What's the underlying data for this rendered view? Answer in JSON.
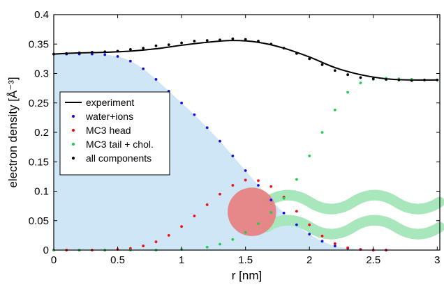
{
  "chart_data": {
    "type": "scatter",
    "title": "",
    "xlabel": "r [nm]",
    "ylabel": "electron density [Å⁻³]",
    "xlim": [
      0,
      3.02
    ],
    "ylim": [
      0,
      0.4
    ],
    "xticks": [
      0,
      0.5,
      1,
      1.5,
      2,
      2.5,
      3
    ],
    "xtick_labels": [
      "0",
      "0.5",
      "1",
      "1.5",
      "2",
      "2.5",
      "3"
    ],
    "yticks": [
      0,
      0.05,
      0.1,
      0.15,
      0.2,
      0.25,
      0.3,
      0.35,
      0.4
    ],
    "ytick_labels": [
      "0",
      "0.05",
      "0.1",
      "0.15",
      "0.2",
      "0.25",
      "0.3",
      "0.35",
      "0.4"
    ],
    "grid": false,
    "legend_position": "middle-left",
    "series": [
      {
        "name": "experiment",
        "kind": "line",
        "color": "#000000",
        "x": [
          0,
          0.2,
          0.4,
          0.6,
          0.8,
          1.0,
          1.2,
          1.4,
          1.6,
          1.8,
          2.0,
          2.2,
          2.4,
          2.6,
          2.8,
          3.0
        ],
        "y": [
          0.333,
          0.335,
          0.336,
          0.338,
          0.342,
          0.348,
          0.353,
          0.356,
          0.353,
          0.343,
          0.328,
          0.31,
          0.298,
          0.291,
          0.289,
          0.289
        ]
      },
      {
        "name": "water+ions",
        "kind": "points",
        "color": "#1010ee",
        "x": [
          0,
          0.1,
          0.2,
          0.3,
          0.4,
          0.5,
          0.6,
          0.7,
          0.8,
          0.9,
          1.0,
          1.1,
          1.2,
          1.3,
          1.4,
          1.5,
          1.6,
          1.7,
          1.8,
          1.9,
          2.0,
          2.1,
          2.2,
          2.3,
          2.4,
          2.5,
          2.6
        ],
        "y": [
          0.333,
          0.333,
          0.333,
          0.333,
          0.332,
          0.329,
          0.321,
          0.308,
          0.29,
          0.27,
          0.25,
          0.23,
          0.208,
          0.185,
          0.16,
          0.135,
          0.11,
          0.085,
          0.063,
          0.043,
          0.027,
          0.015,
          0.007,
          0.003,
          0.001,
          0.0,
          0.0
        ]
      },
      {
        "name": "MC3 head",
        "kind": "points",
        "color": "#ee1010",
        "x": [
          0,
          0.1,
          0.2,
          0.3,
          0.4,
          0.5,
          0.6,
          0.7,
          0.8,
          0.9,
          1.0,
          1.1,
          1.2,
          1.3,
          1.4,
          1.5,
          1.6,
          1.7,
          1.8,
          1.9,
          2.0,
          2.1,
          2.2,
          2.3,
          2.4,
          2.5,
          2.6
        ],
        "y": [
          0.0,
          0.0,
          0.0,
          0.0,
          0.0,
          0.001,
          0.003,
          0.007,
          0.014,
          0.025,
          0.04,
          0.058,
          0.077,
          0.095,
          0.11,
          0.119,
          0.118,
          0.108,
          0.09,
          0.066,
          0.043,
          0.024,
          0.011,
          0.004,
          0.001,
          0.0,
          0.0
        ]
      },
      {
        "name": "MC3 tail + chol.",
        "kind": "points",
        "color": "#20cc50",
        "x": [
          0,
          0.2,
          0.4,
          0.6,
          0.8,
          1.0,
          1.2,
          1.3,
          1.4,
          1.5,
          1.6,
          1.7,
          1.8,
          1.9,
          2.0,
          2.1,
          2.2,
          2.3,
          2.4,
          2.5,
          2.6,
          2.7,
          2.8,
          2.9,
          3.0
        ],
        "y": [
          0.0,
          0.0,
          0.0,
          0.0,
          0.0,
          0.001,
          0.005,
          0.01,
          0.018,
          0.03,
          0.045,
          0.064,
          0.088,
          0.12,
          0.16,
          0.2,
          0.238,
          0.268,
          0.284,
          0.29,
          0.292,
          0.291,
          0.29,
          0.289,
          0.289
        ]
      },
      {
        "name": "all components",
        "kind": "points",
        "color": "#000000",
        "x": [
          0,
          0.1,
          0.2,
          0.3,
          0.4,
          0.5,
          0.6,
          0.7,
          0.8,
          0.9,
          1.0,
          1.1,
          1.2,
          1.3,
          1.4,
          1.5,
          1.6,
          1.7,
          1.8,
          1.9,
          2.0,
          2.1,
          2.2,
          2.3,
          2.4,
          2.5,
          2.6,
          2.7,
          2.8,
          2.9,
          3.0
        ],
        "y": [
          0.333,
          0.334,
          0.335,
          0.336,
          0.337,
          0.338,
          0.341,
          0.343,
          0.347,
          0.349,
          0.352,
          0.355,
          0.356,
          0.357,
          0.359,
          0.358,
          0.355,
          0.35,
          0.343,
          0.334,
          0.325,
          0.315,
          0.305,
          0.298,
          0.293,
          0.291,
          0.29,
          0.289,
          0.288,
          0.289,
          0.289
        ]
      }
    ],
    "shaded_area": {
      "color": "#cfe6f6",
      "x": [
        0,
        0.1,
        0.2,
        0.3,
        0.4,
        0.5,
        0.6,
        0.7,
        0.8,
        0.9,
        1.0,
        1.1,
        1.2,
        1.3,
        1.4,
        1.5,
        1.6,
        1.7,
        1.8,
        1.9,
        2.0,
        2.1,
        2.2,
        2.3,
        2.4,
        2.5
      ],
      "y": [
        0.333,
        0.333,
        0.333,
        0.333,
        0.332,
        0.329,
        0.321,
        0.308,
        0.29,
        0.27,
        0.25,
        0.23,
        0.208,
        0.185,
        0.16,
        0.135,
        0.11,
        0.085,
        0.063,
        0.043,
        0.027,
        0.015,
        0.007,
        0.003,
        0.001,
        0.0
      ]
    },
    "illustration": {
      "head_circle": {
        "cx": 1.55,
        "cy": 0.065,
        "r_nm": 0.19,
        "color": "#e88080"
      },
      "tails_color": "#a8e6bc"
    }
  }
}
